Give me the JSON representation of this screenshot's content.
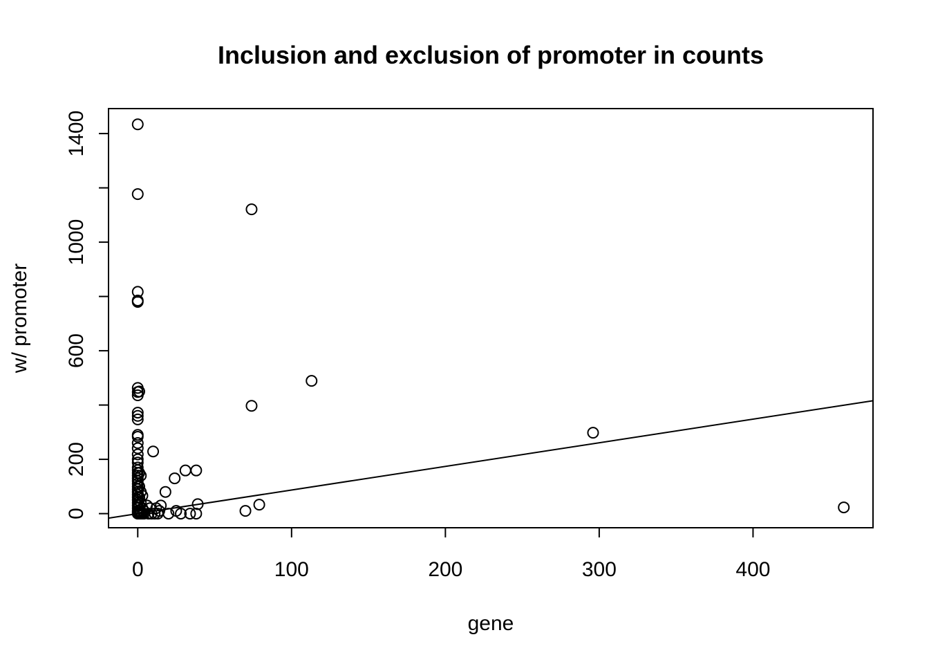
{
  "chart_data": {
    "type": "scatter",
    "title": "Inclusion and exclusion of promoter in counts",
    "xlabel": "gene",
    "ylabel": "w/ promoter",
    "xlim": [
      -19,
      478
    ],
    "ylim": [
      -52,
      1492
    ],
    "x_ticks": [
      0,
      100,
      200,
      300,
      400
    ],
    "y_ticks": [
      0,
      200,
      600,
      1000,
      1400
    ],
    "y_minor_ticks": [
      400,
      800,
      1200
    ],
    "grid": false,
    "legend": "none",
    "fit_line": {
      "intercept": 0,
      "slope": 0.87
    },
    "points": [
      [
        0,
        1434
      ],
      [
        0,
        1177
      ],
      [
        0,
        817
      ],
      [
        0,
        785
      ],
      [
        0,
        780
      ],
      [
        0,
        463
      ],
      [
        0,
        448
      ],
      [
        1,
        450
      ],
      [
        0,
        436
      ],
      [
        0,
        372
      ],
      [
        0,
        360
      ],
      [
        0,
        347
      ],
      [
        0,
        290
      ],
      [
        0,
        283
      ],
      [
        0,
        260
      ],
      [
        0,
        241
      ],
      [
        0,
        218
      ],
      [
        0,
        200
      ],
      [
        0,
        188
      ],
      [
        0,
        170
      ],
      [
        0,
        160
      ],
      [
        0,
        150
      ],
      [
        0,
        140
      ],
      [
        0,
        130
      ],
      [
        0,
        120
      ],
      [
        0,
        110
      ],
      [
        0,
        100
      ],
      [
        0,
        90
      ],
      [
        0,
        80
      ],
      [
        0,
        70
      ],
      [
        0,
        60
      ],
      [
        0,
        50
      ],
      [
        0,
        40
      ],
      [
        0,
        30
      ],
      [
        0,
        20
      ],
      [
        0,
        10
      ],
      [
        0,
        5
      ],
      [
        0,
        0
      ],
      [
        1,
        150
      ],
      [
        1,
        100
      ],
      [
        1,
        60
      ],
      [
        1,
        30
      ],
      [
        1,
        10
      ],
      [
        1,
        0
      ],
      [
        2,
        140
      ],
      [
        2,
        80
      ],
      [
        2,
        40
      ],
      [
        2,
        5
      ],
      [
        2,
        0
      ],
      [
        3,
        20
      ],
      [
        3,
        0
      ],
      [
        4,
        10
      ],
      [
        4,
        0
      ],
      [
        3,
        66
      ],
      [
        6,
        30
      ],
      [
        7,
        0
      ],
      [
        8,
        20
      ],
      [
        9,
        0
      ],
      [
        10,
        229
      ],
      [
        11,
        0
      ],
      [
        12,
        20
      ],
      [
        13,
        0
      ],
      [
        14,
        10
      ],
      [
        15,
        30
      ],
      [
        20,
        0
      ],
      [
        24,
        130
      ],
      [
        25,
        10
      ],
      [
        18,
        80
      ],
      [
        28,
        0
      ],
      [
        31,
        159
      ],
      [
        34,
        0
      ],
      [
        38,
        159
      ],
      [
        38,
        0
      ],
      [
        39,
        35
      ],
      [
        70,
        10
      ],
      [
        74,
        1121
      ],
      [
        74,
        397
      ],
      [
        79,
        33
      ],
      [
        113,
        489
      ],
      [
        296,
        298
      ],
      [
        459,
        23
      ]
    ]
  }
}
